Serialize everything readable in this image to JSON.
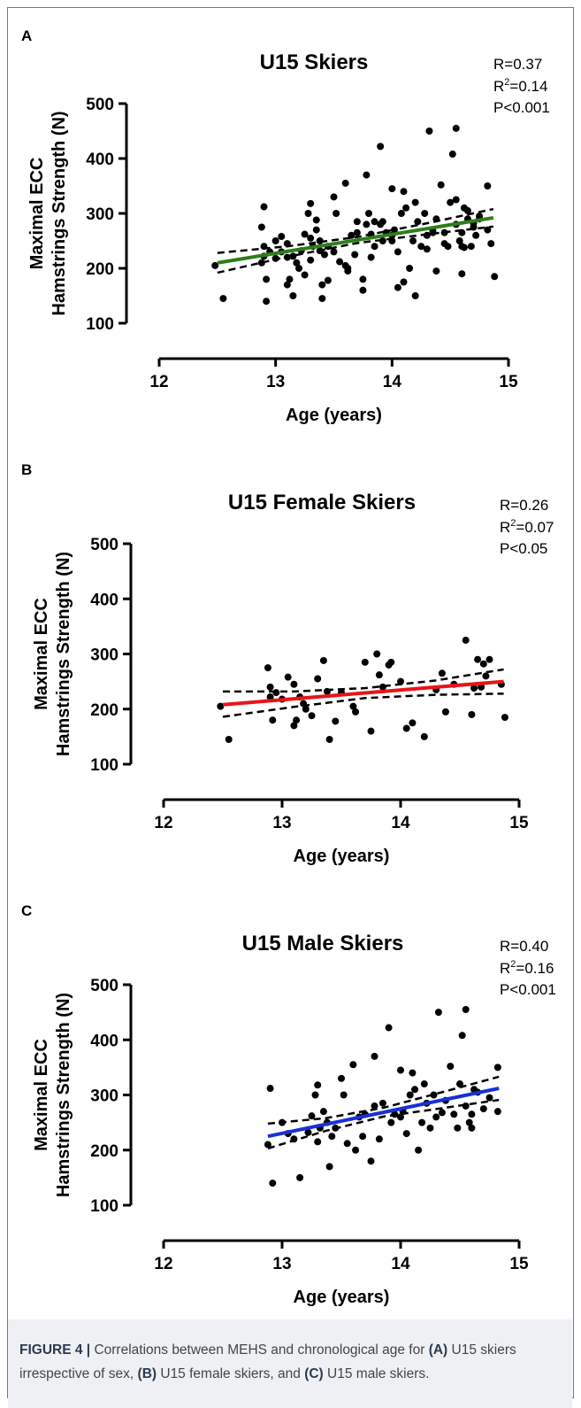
{
  "chart_data": [
    {
      "type": "scatter",
      "panel": "A",
      "title": "U15 Skiers",
      "stats": {
        "r": "R=0.37",
        "r2": [
          "R",
          "2",
          "=0.14"
        ],
        "p": "P<0.001"
      },
      "ylabel": [
        "Maximal ECC",
        "Hamstrings Strength (N)"
      ],
      "xlabel": "Age (years)",
      "xlim": [
        12,
        15
      ],
      "xticks": [
        12,
        13,
        14,
        15
      ],
      "ylim": [
        100,
        500
      ],
      "yticks": [
        100,
        200,
        300,
        400,
        500
      ],
      "color": "#000000",
      "x": [
        12.48,
        12.55,
        12.88,
        12.9,
        12.9,
        12.92,
        12.95,
        13.0,
        13.05,
        13.1,
        13.1,
        13.12,
        13.15,
        13.18,
        13.2,
        13.25,
        13.3,
        13.35,
        13.38,
        13.4,
        13.45,
        13.5,
        13.6,
        13.62,
        13.7,
        13.75,
        13.8,
        13.82,
        13.85,
        13.9,
        13.92,
        14.0,
        14.05,
        14.1,
        14.2,
        14.3,
        14.35,
        14.38,
        14.45,
        14.55,
        14.6,
        14.62,
        14.65,
        14.68,
        14.7,
        14.75,
        14.72,
        14.85,
        14.88,
        12.88,
        12.9,
        12.92,
        13.0,
        13.05,
        13.1,
        13.15,
        13.22,
        13.28,
        13.3,
        13.3,
        13.32,
        13.35,
        13.38,
        13.4,
        13.42,
        13.45,
        13.5,
        13.52,
        13.55,
        13.6,
        13.62,
        13.65,
        13.7,
        13.75,
        13.78,
        13.78,
        13.82,
        13.85,
        13.9,
        13.92,
        13.95,
        14.0,
        14.02,
        14.05,
        14.08,
        14.1,
        14.12,
        14.15,
        14.18,
        14.2,
        14.22,
        14.25,
        14.28,
        14.32,
        14.35,
        14.38,
        14.42,
        14.45,
        14.48,
        14.5,
        14.52,
        14.55,
        14.55,
        14.58,
        14.6,
        14.62,
        14.65,
        14.7,
        14.75,
        14.82,
        14.82,
        13.25,
        13.68,
        14.0,
        14.3,
        14.6
      ],
      "y": [
        205,
        145,
        275,
        222,
        240,
        180,
        230,
        218,
        258,
        245,
        170,
        180,
        222,
        210,
        200,
        188,
        255,
        288,
        232,
        145,
        178,
        230,
        205,
        195,
        285,
        160,
        300,
        262,
        240,
        280,
        285,
        250,
        165,
        175,
        150,
        235,
        265,
        195,
        245,
        325,
        190,
        238,
        290,
        240,
        282,
        290,
        260,
        245,
        185,
        210,
        312,
        140,
        250,
        230,
        220,
        150,
        232,
        300,
        318,
        215,
        240,
        270,
        250,
        170,
        225,
        240,
        330,
        300,
        212,
        355,
        200,
        260,
        265,
        180,
        370,
        280,
        220,
        285,
        422,
        250,
        265,
        345,
        270,
        230,
        300,
        340,
        310,
        200,
        250,
        320,
        285,
        240,
        300,
        450,
        268,
        290,
        352,
        265,
        240,
        320,
        408,
        455,
        280,
        250,
        240,
        310,
        305,
        275,
        295,
        350,
        270,
        262,
        225,
        260,
        260,
        265
      ],
      "fit": {
        "color": "#2e7d1a",
        "x": [
          12.5,
          13.1,
          13.7,
          14.3,
          14.87
        ],
        "y": [
          210,
          230.8,
          251.5,
          272.3,
          292
        ],
        "upper": [
          228,
          240,
          257,
          282,
          308
        ],
        "lower": [
          192,
          221,
          246,
          262,
          276
        ]
      }
    },
    {
      "type": "scatter",
      "panel": "B",
      "title": "U15 Female Skiers",
      "stats": {
        "r": "R=0.26",
        "r2": [
          "R",
          "2",
          "=0.07"
        ],
        "p": "P<0.05"
      },
      "ylabel": [
        "Maximal ECC",
        "Hamstrings Strength (N)"
      ],
      "xlabel": "Age (years)",
      "xlim": [
        12,
        15
      ],
      "xticks": [
        12,
        13,
        14,
        15
      ],
      "ylim": [
        100,
        500
      ],
      "yticks": [
        100,
        200,
        300,
        400,
        500
      ],
      "color": "#000000",
      "x": [
        12.48,
        12.55,
        12.88,
        12.9,
        12.9,
        12.92,
        12.95,
        13.0,
        13.05,
        13.1,
        13.1,
        13.12,
        13.15,
        13.18,
        13.2,
        13.25,
        13.3,
        13.35,
        13.38,
        13.4,
        13.45,
        13.5,
        13.6,
        13.62,
        13.7,
        13.75,
        13.8,
        13.82,
        13.85,
        13.9,
        13.92,
        14.0,
        14.05,
        14.1,
        14.2,
        14.3,
        14.35,
        14.38,
        14.45,
        14.55,
        14.6,
        14.62,
        14.65,
        14.68,
        14.7,
        14.75,
        14.72,
        14.85,
        14.88
      ],
      "y": [
        205,
        145,
        275,
        222,
        240,
        180,
        230,
        218,
        258,
        245,
        170,
        180,
        222,
        210,
        200,
        188,
        255,
        288,
        232,
        145,
        178,
        230,
        205,
        195,
        285,
        160,
        300,
        262,
        240,
        280,
        285,
        250,
        165,
        175,
        150,
        235,
        265,
        195,
        245,
        325,
        190,
        238,
        290,
        240,
        282,
        290,
        260,
        245,
        185
      ],
      "fit": {
        "color": "#e8141b",
        "x": [
          12.5,
          13.1,
          13.7,
          14.3,
          14.87
        ],
        "y": [
          208,
          218.6,
          229.3,
          239.9,
          250
        ],
        "upper": [
          232,
          232,
          238,
          252,
          272
        ],
        "lower": [
          186,
          204,
          220,
          226,
          228
        ]
      }
    },
    {
      "type": "scatter",
      "panel": "C",
      "title": "U15 Male Skiers",
      "stats": {
        "r": "R=0.40",
        "r2": [
          "R",
          "2",
          "=0.16"
        ],
        "p": "P<0.001"
      },
      "ylabel": [
        "Maximal ECC",
        "Hamstrings Strength (N)"
      ],
      "xlabel": "Age (years)",
      "xlim": [
        12,
        15
      ],
      "xticks": [
        12,
        13,
        14,
        15
      ],
      "ylim": [
        100,
        500
      ],
      "yticks": [
        100,
        200,
        300,
        400,
        500
      ],
      "color": "#000000",
      "x": [
        12.88,
        12.9,
        12.92,
        13.0,
        13.05,
        13.1,
        13.15,
        13.22,
        13.28,
        13.3,
        13.3,
        13.32,
        13.35,
        13.38,
        13.4,
        13.42,
        13.45,
        13.5,
        13.52,
        13.55,
        13.6,
        13.62,
        13.65,
        13.7,
        13.75,
        13.78,
        13.78,
        13.82,
        13.85,
        13.9,
        13.92,
        13.95,
        14.0,
        14.02,
        14.05,
        14.08,
        14.1,
        14.12,
        14.15,
        14.18,
        14.2,
        14.22,
        14.25,
        14.28,
        14.32,
        14.35,
        14.38,
        14.42,
        14.45,
        14.48,
        14.5,
        14.52,
        14.55,
        14.55,
        14.58,
        14.6,
        14.62,
        14.65,
        14.7,
        14.75,
        14.82,
        14.82,
        13.25,
        13.68,
        14.0,
        14.3,
        14.6
      ],
      "y": [
        210,
        312,
        140,
        250,
        230,
        220,
        150,
        232,
        300,
        318,
        215,
        240,
        270,
        250,
        170,
        225,
        240,
        330,
        300,
        212,
        355,
        200,
        260,
        265,
        180,
        370,
        280,
        220,
        285,
        422,
        250,
        265,
        345,
        270,
        230,
        300,
        340,
        310,
        200,
        250,
        320,
        285,
        240,
        300,
        450,
        268,
        290,
        352,
        265,
        240,
        320,
        408,
        455,
        280,
        250,
        240,
        310,
        305,
        275,
        295,
        350,
        270,
        262,
        225,
        260,
        260,
        265
      ],
      "fit": {
        "color": "#1a2fd6",
        "x": [
          12.88,
          13.37,
          13.86,
          14.35,
          14.83
        ],
        "y": [
          225,
          246.9,
          268.7,
          290.6,
          312
        ],
        "upper": [
          248,
          258,
          277,
          305,
          333
        ],
        "lower": [
          203,
          235,
          261,
          276,
          291
        ]
      }
    }
  ],
  "caption": [
    {
      "text": "FIGURE 4 |",
      "bold": true
    },
    {
      "text": " Correlations between MEHS and chronological age for ",
      "bold": false
    },
    {
      "text": "(A)",
      "bold": true
    },
    {
      "text": " U15 skiers irrespective of sex, ",
      "bold": false
    },
    {
      "text": "(B)",
      "bold": true
    },
    {
      "text": " U15 female skiers, and ",
      "bold": false
    },
    {
      "text": "(C)",
      "bold": true
    },
    {
      "text": " U15 male skiers.",
      "bold": false
    }
  ]
}
